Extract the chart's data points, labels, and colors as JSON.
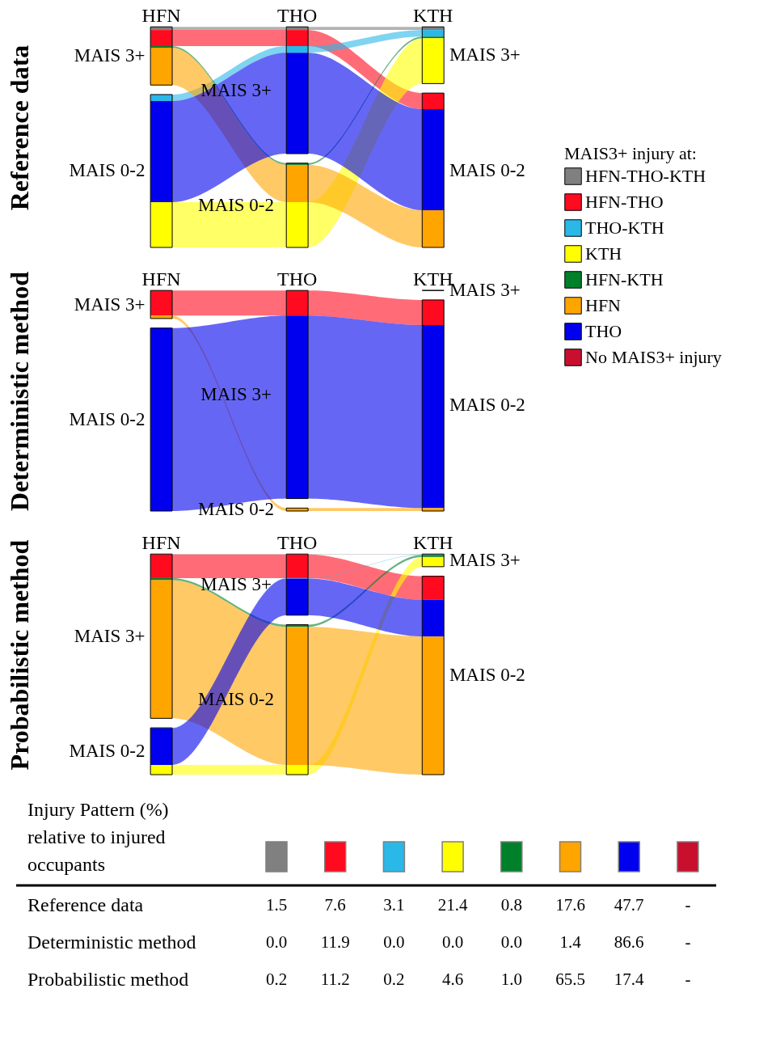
{
  "chart_data": {
    "type": "other",
    "title": "Injury Pattern (%) relative to injured occupants",
    "categories": [
      "Reference data",
      "Deterministic method",
      "Probabilistic method"
    ],
    "annotations": [
      "HFN",
      "THO",
      "KTH"
    ],
    "y_categories": [
      "MAIS 3+",
      "MAIS 0-2"
    ],
    "legend": "right",
    "legend_title": "MAIS3+ injury at:",
    "series": [
      {
        "name": "HFN-THO-KTH",
        "color": "#808080",
        "values": [
          1.5,
          0.0,
          0.2
        ],
        "value_labels": [
          "1.5",
          "0.0",
          "0.2"
        ]
      },
      {
        "name": "HFN-THO",
        "color": "#ff0a1e",
        "values": [
          7.6,
          11.9,
          11.2
        ],
        "value_labels": [
          "7.6",
          "11.9",
          "11.2"
        ]
      },
      {
        "name": "THO-KTH",
        "color": "#29b8e8",
        "values": [
          3.1,
          0.0,
          0.2
        ],
        "value_labels": [
          "3.1",
          "0.0",
          "0.2"
        ]
      },
      {
        "name": "KTH",
        "color": "#ffff00",
        "values": [
          21.4,
          0.0,
          4.6
        ],
        "value_labels": [
          "21.4",
          "0.0",
          "4.6"
        ]
      },
      {
        "name": "HFN-KTH",
        "color": "#00802b",
        "values": [
          0.8,
          0.0,
          1.0
        ],
        "value_labels": [
          "0.8",
          "0.0",
          "1.0"
        ]
      },
      {
        "name": "HFN",
        "color": "#ffa500",
        "values": [
          17.6,
          1.4,
          65.5
        ],
        "value_labels": [
          "17.6",
          "1.4",
          "65.5"
        ]
      },
      {
        "name": "THO",
        "color": "#0000ee",
        "values": [
          47.7,
          86.6,
          17.4
        ],
        "value_labels": [
          "47.7",
          "86.6",
          "17.4"
        ]
      },
      {
        "name": "No MAIS3+ injury",
        "color": "#c8102e",
        "values": [
          null,
          null,
          null
        ],
        "value_labels": [
          "-",
          "-",
          "-"
        ]
      }
    ]
  }
}
